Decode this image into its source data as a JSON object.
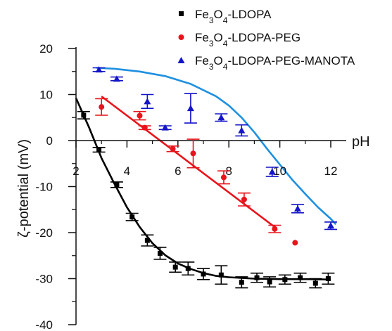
{
  "chart_data": {
    "type": "scatter",
    "xlabel": "pH",
    "ylabel": "ζ-potential (mV)",
    "xlim": [
      2,
      12.5
    ],
    "ylim": [
      -40,
      20
    ],
    "x_ticks": [
      2,
      4,
      6,
      8,
      10,
      12
    ],
    "y_ticks": [
      20,
      10,
      0,
      -10,
      -20,
      -30,
      -40
    ],
    "grid": false,
    "legend_position": "top-right",
    "series": [
      {
        "name": "Fe3O4-LDOPA",
        "legend_parts": [
          "Fe",
          "3",
          "O",
          "4",
          "-LDOPA"
        ],
        "marker": "square",
        "color": "#000000",
        "points": [
          {
            "x": 2.3,
            "y": 5.5,
            "err": 0.8
          },
          {
            "x": 2.9,
            "y": -2.0,
            "err": 0.5
          },
          {
            "x": 3.6,
            "y": -9.6,
            "err": 0.6
          },
          {
            "x": 4.2,
            "y": -16.6,
            "err": 0.8
          },
          {
            "x": 4.8,
            "y": -21.7,
            "err": 1.2
          },
          {
            "x": 5.3,
            "y": -24.5,
            "err": 1.3
          },
          {
            "x": 5.9,
            "y": -27.5,
            "err": 1.1
          },
          {
            "x": 6.4,
            "y": -27.8,
            "err": 1.4
          },
          {
            "x": 7.0,
            "y": -29.0,
            "err": 1.2
          },
          {
            "x": 7.7,
            "y": -29.2,
            "err": 2.0
          },
          {
            "x": 8.5,
            "y": -30.8,
            "err": 1.2
          },
          {
            "x": 9.1,
            "y": -29.8,
            "err": 1.0
          },
          {
            "x": 9.6,
            "y": -30.7,
            "err": 1.1
          },
          {
            "x": 10.2,
            "y": -30.2,
            "err": 1.0
          },
          {
            "x": 10.8,
            "y": -29.8,
            "err": 1.0
          },
          {
            "x": 11.4,
            "y": -31.0,
            "err": 1.0
          },
          {
            "x": 11.9,
            "y": -30.0,
            "err": 1.2
          }
        ],
        "fit": [
          [
            2.0,
            9.2
          ],
          [
            2.5,
            3.0
          ],
          [
            3.0,
            -3.8
          ],
          [
            3.5,
            -9.3
          ],
          [
            4.0,
            -14.5
          ],
          [
            4.5,
            -18.8
          ],
          [
            5.0,
            -22.3
          ],
          [
            5.5,
            -24.9
          ],
          [
            6.0,
            -26.7
          ],
          [
            6.5,
            -27.9
          ],
          [
            7.0,
            -28.8
          ],
          [
            7.5,
            -29.4
          ],
          [
            8.0,
            -29.7
          ],
          [
            9.0,
            -30.0
          ],
          [
            10.0,
            -30.1
          ],
          [
            11.0,
            -30.1
          ],
          [
            12.0,
            -30.2
          ]
        ],
        "fit_color": "#000000"
      },
      {
        "name": "Fe3O4-LDOPA-PEG",
        "legend_parts": [
          "Fe",
          "3",
          "O",
          "4",
          "-LDOPA-PEG"
        ],
        "marker": "circle",
        "color": "#e8141b",
        "points": [
          {
            "x": 3.0,
            "y": 7.3,
            "err": 1.8
          },
          {
            "x": 4.5,
            "y": 5.4,
            "err": 0.9
          },
          {
            "x": 4.7,
            "y": 2.8,
            "err": 0.4
          },
          {
            "x": 5.8,
            "y": -1.8,
            "err": 0.6
          },
          {
            "x": 6.6,
            "y": -2.8,
            "err": 3.1
          },
          {
            "x": 7.8,
            "y": -8.0,
            "err": 1.4
          },
          {
            "x": 8.6,
            "y": -12.8,
            "err": 1.4
          },
          {
            "x": 9.8,
            "y": -19.2,
            "err": 0.8
          },
          {
            "x": 10.6,
            "y": -22.2,
            "err": 0
          }
        ],
        "fit": [
          [
            3.0,
            9.6
          ],
          [
            9.8,
            -18.8
          ]
        ],
        "fit_color": "#e8141b"
      },
      {
        "name": "Fe3O4-LDOPA-PEG-MANOTA",
        "legend_parts": [
          "Fe",
          "3",
          "O",
          "4",
          "-LDOPA-PEG-MANOTA"
        ],
        "marker": "triangle",
        "color": "#1414c8",
        "points": [
          {
            "x": 2.9,
            "y": 15.4,
            "err": 0.4
          },
          {
            "x": 3.6,
            "y": 13.4,
            "err": 0.4
          },
          {
            "x": 4.8,
            "y": 8.5,
            "err": 1.5
          },
          {
            "x": 5.5,
            "y": 2.8,
            "err": 0.4
          },
          {
            "x": 6.5,
            "y": 7.0,
            "err": 3.2
          },
          {
            "x": 7.7,
            "y": 5.0,
            "err": 0.8
          },
          {
            "x": 8.5,
            "y": 2.2,
            "err": 1.2
          },
          {
            "x": 9.7,
            "y": -6.8,
            "err": 1.0
          },
          {
            "x": 10.7,
            "y": -14.8,
            "err": 0.9
          },
          {
            "x": 12.0,
            "y": -18.5,
            "err": 0.8
          }
        ],
        "fit": [
          [
            2.8,
            15.8
          ],
          [
            3.5,
            15.6
          ],
          [
            4.5,
            15.0
          ],
          [
            5.5,
            14.0
          ],
          [
            6.5,
            12.3
          ],
          [
            7.5,
            9.6
          ],
          [
            8.0,
            7.6
          ],
          [
            8.5,
            5.0
          ],
          [
            9.0,
            1.8
          ],
          [
            9.5,
            -1.8
          ],
          [
            10.0,
            -5.2
          ],
          [
            10.5,
            -8.6
          ],
          [
            11.0,
            -11.6
          ],
          [
            11.5,
            -14.5
          ],
          [
            12.0,
            -17.0
          ],
          [
            12.2,
            -18.2
          ]
        ],
        "fit_color": "#1e90e0"
      }
    ]
  }
}
